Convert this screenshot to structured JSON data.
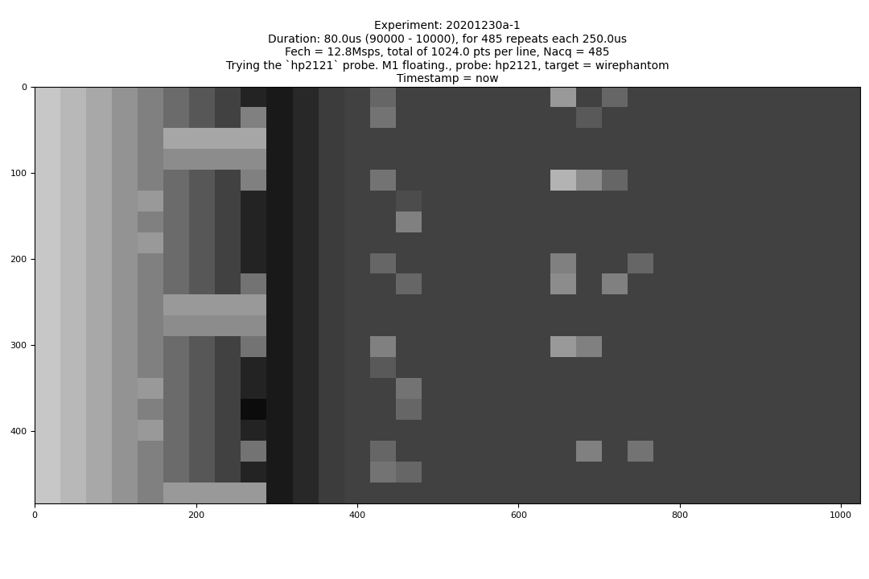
{
  "chart_data": {
    "type": "heatmap",
    "title": "Experiment: 20201230a-1\nDuration: 80.0us (90000 - 10000), for 485 repeats each 250.0us\nFech = 12.8Msps, total of 1024.0 pts per line, Nacq = 485\nTrying the `hp2121` probe. M1 floating., probe: hp2121, target = wirephantom\nTimestamp = now",
    "color": "gray",
    "value_range": [
      0,
      1
    ],
    "xlim": [
      0,
      1024
    ],
    "ylim": [
      485,
      0
    ],
    "xticks": [
      0,
      200,
      400,
      600,
      800,
      1000
    ],
    "yticks": [
      0,
      100,
      200,
      300,
      400
    ],
    "cells": [
      [
        0.78,
        0.72,
        0.66,
        0.58,
        0.5,
        0.42,
        0.34,
        0.26,
        0.14,
        0.1,
        0.16,
        0.24,
        0.26,
        0.4,
        0.26,
        0.26,
        0.26,
        0.26,
        0.26,
        0.26,
        0.6,
        0.26,
        0.4,
        0.26,
        0.26,
        0.26,
        0.26,
        0.26,
        0.26,
        0.26,
        0.26,
        0.26
      ],
      [
        0.78,
        0.72,
        0.66,
        0.58,
        0.5,
        0.42,
        0.34,
        0.26,
        0.5,
        0.1,
        0.16,
        0.24,
        0.26,
        0.45,
        0.26,
        0.26,
        0.26,
        0.26,
        0.26,
        0.26,
        0.26,
        0.35,
        0.26,
        0.26,
        0.26,
        0.26,
        0.26,
        0.26,
        0.26,
        0.26,
        0.26,
        0.26
      ],
      [
        0.78,
        0.72,
        0.66,
        0.58,
        0.5,
        0.65,
        0.65,
        0.65,
        0.65,
        0.1,
        0.16,
        0.24,
        0.26,
        0.26,
        0.26,
        0.26,
        0.26,
        0.26,
        0.26,
        0.26,
        0.26,
        0.26,
        0.26,
        0.26,
        0.26,
        0.26,
        0.26,
        0.26,
        0.26,
        0.26,
        0.26,
        0.26
      ],
      [
        0.78,
        0.72,
        0.66,
        0.58,
        0.5,
        0.55,
        0.55,
        0.55,
        0.55,
        0.1,
        0.16,
        0.24,
        0.26,
        0.26,
        0.26,
        0.26,
        0.26,
        0.26,
        0.26,
        0.26,
        0.26,
        0.26,
        0.26,
        0.26,
        0.26,
        0.26,
        0.26,
        0.26,
        0.26,
        0.26,
        0.26,
        0.26
      ],
      [
        0.78,
        0.72,
        0.66,
        0.58,
        0.5,
        0.42,
        0.34,
        0.26,
        0.5,
        0.1,
        0.16,
        0.24,
        0.26,
        0.45,
        0.26,
        0.26,
        0.26,
        0.26,
        0.26,
        0.26,
        0.7,
        0.55,
        0.4,
        0.26,
        0.26,
        0.26,
        0.26,
        0.26,
        0.26,
        0.26,
        0.26,
        0.26
      ],
      [
        0.78,
        0.72,
        0.66,
        0.58,
        0.6,
        0.42,
        0.34,
        0.26,
        0.14,
        0.1,
        0.16,
        0.24,
        0.26,
        0.26,
        0.3,
        0.26,
        0.26,
        0.26,
        0.26,
        0.26,
        0.26,
        0.26,
        0.26,
        0.26,
        0.26,
        0.26,
        0.26,
        0.26,
        0.26,
        0.26,
        0.26,
        0.26
      ],
      [
        0.78,
        0.72,
        0.66,
        0.58,
        0.5,
        0.42,
        0.34,
        0.26,
        0.14,
        0.1,
        0.16,
        0.24,
        0.26,
        0.26,
        0.5,
        0.26,
        0.26,
        0.26,
        0.26,
        0.26,
        0.26,
        0.26,
        0.26,
        0.26,
        0.26,
        0.26,
        0.26,
        0.26,
        0.26,
        0.26,
        0.26,
        0.26
      ],
      [
        0.78,
        0.72,
        0.66,
        0.58,
        0.6,
        0.42,
        0.34,
        0.26,
        0.14,
        0.1,
        0.16,
        0.24,
        0.26,
        0.26,
        0.26,
        0.26,
        0.26,
        0.26,
        0.26,
        0.26,
        0.26,
        0.26,
        0.26,
        0.26,
        0.26,
        0.26,
        0.26,
        0.26,
        0.26,
        0.26,
        0.26,
        0.26
      ],
      [
        0.78,
        0.72,
        0.66,
        0.58,
        0.5,
        0.42,
        0.34,
        0.26,
        0.14,
        0.1,
        0.16,
        0.24,
        0.26,
        0.4,
        0.26,
        0.26,
        0.26,
        0.26,
        0.26,
        0.26,
        0.5,
        0.26,
        0.26,
        0.4,
        0.26,
        0.26,
        0.26,
        0.26,
        0.26,
        0.26,
        0.26,
        0.26
      ],
      [
        0.78,
        0.72,
        0.66,
        0.58,
        0.5,
        0.42,
        0.34,
        0.26,
        0.45,
        0.1,
        0.16,
        0.24,
        0.26,
        0.26,
        0.4,
        0.26,
        0.26,
        0.26,
        0.26,
        0.26,
        0.55,
        0.26,
        0.5,
        0.26,
        0.26,
        0.26,
        0.26,
        0.26,
        0.26,
        0.26,
        0.26,
        0.26
      ],
      [
        0.78,
        0.72,
        0.66,
        0.58,
        0.5,
        0.6,
        0.6,
        0.6,
        0.6,
        0.1,
        0.16,
        0.24,
        0.26,
        0.26,
        0.26,
        0.26,
        0.26,
        0.26,
        0.26,
        0.26,
        0.26,
        0.26,
        0.26,
        0.26,
        0.26,
        0.26,
        0.26,
        0.26,
        0.26,
        0.26,
        0.26,
        0.26
      ],
      [
        0.78,
        0.72,
        0.66,
        0.58,
        0.5,
        0.55,
        0.55,
        0.55,
        0.55,
        0.1,
        0.16,
        0.24,
        0.26,
        0.26,
        0.26,
        0.26,
        0.26,
        0.26,
        0.26,
        0.26,
        0.26,
        0.26,
        0.26,
        0.26,
        0.26,
        0.26,
        0.26,
        0.26,
        0.26,
        0.26,
        0.26,
        0.26
      ],
      [
        0.78,
        0.72,
        0.66,
        0.58,
        0.5,
        0.42,
        0.34,
        0.26,
        0.45,
        0.1,
        0.16,
        0.24,
        0.26,
        0.5,
        0.26,
        0.26,
        0.26,
        0.26,
        0.26,
        0.26,
        0.6,
        0.5,
        0.26,
        0.26,
        0.26,
        0.26,
        0.26,
        0.26,
        0.26,
        0.26,
        0.26,
        0.26
      ],
      [
        0.78,
        0.72,
        0.66,
        0.58,
        0.5,
        0.42,
        0.34,
        0.26,
        0.14,
        0.1,
        0.16,
        0.24,
        0.26,
        0.35,
        0.26,
        0.26,
        0.26,
        0.26,
        0.26,
        0.26,
        0.26,
        0.26,
        0.26,
        0.26,
        0.26,
        0.26,
        0.26,
        0.26,
        0.26,
        0.26,
        0.26,
        0.26
      ],
      [
        0.78,
        0.72,
        0.66,
        0.58,
        0.6,
        0.42,
        0.34,
        0.26,
        0.14,
        0.1,
        0.16,
        0.24,
        0.26,
        0.26,
        0.45,
        0.26,
        0.26,
        0.26,
        0.26,
        0.26,
        0.26,
        0.26,
        0.26,
        0.26,
        0.26,
        0.26,
        0.26,
        0.26,
        0.26,
        0.26,
        0.26,
        0.26
      ],
      [
        0.78,
        0.72,
        0.66,
        0.58,
        0.5,
        0.42,
        0.34,
        0.26,
        0.05,
        0.1,
        0.16,
        0.24,
        0.26,
        0.26,
        0.4,
        0.26,
        0.26,
        0.26,
        0.26,
        0.26,
        0.26,
        0.26,
        0.26,
        0.26,
        0.26,
        0.26,
        0.26,
        0.26,
        0.26,
        0.26,
        0.26,
        0.26
      ],
      [
        0.78,
        0.72,
        0.66,
        0.58,
        0.6,
        0.42,
        0.34,
        0.26,
        0.14,
        0.1,
        0.16,
        0.24,
        0.26,
        0.26,
        0.26,
        0.26,
        0.26,
        0.26,
        0.26,
        0.26,
        0.26,
        0.26,
        0.26,
        0.26,
        0.26,
        0.26,
        0.26,
        0.26,
        0.26,
        0.26,
        0.26,
        0.26
      ],
      [
        0.78,
        0.72,
        0.66,
        0.58,
        0.5,
        0.42,
        0.34,
        0.26,
        0.45,
        0.1,
        0.16,
        0.24,
        0.26,
        0.4,
        0.26,
        0.26,
        0.26,
        0.26,
        0.26,
        0.26,
        0.26,
        0.5,
        0.26,
        0.45,
        0.26,
        0.26,
        0.26,
        0.26,
        0.26,
        0.26,
        0.26,
        0.26
      ],
      [
        0.78,
        0.72,
        0.66,
        0.58,
        0.5,
        0.42,
        0.34,
        0.26,
        0.14,
        0.1,
        0.16,
        0.24,
        0.26,
        0.45,
        0.4,
        0.26,
        0.26,
        0.26,
        0.26,
        0.26,
        0.26,
        0.26,
        0.26,
        0.26,
        0.26,
        0.26,
        0.26,
        0.26,
        0.26,
        0.26,
        0.26,
        0.26
      ],
      [
        0.78,
        0.72,
        0.66,
        0.58,
        0.5,
        0.6,
        0.6,
        0.6,
        0.6,
        0.1,
        0.16,
        0.24,
        0.26,
        0.26,
        0.26,
        0.26,
        0.26,
        0.26,
        0.26,
        0.26,
        0.26,
        0.26,
        0.26,
        0.26,
        0.26,
        0.26,
        0.26,
        0.26,
        0.26,
        0.26,
        0.26,
        0.26
      ]
    ]
  }
}
